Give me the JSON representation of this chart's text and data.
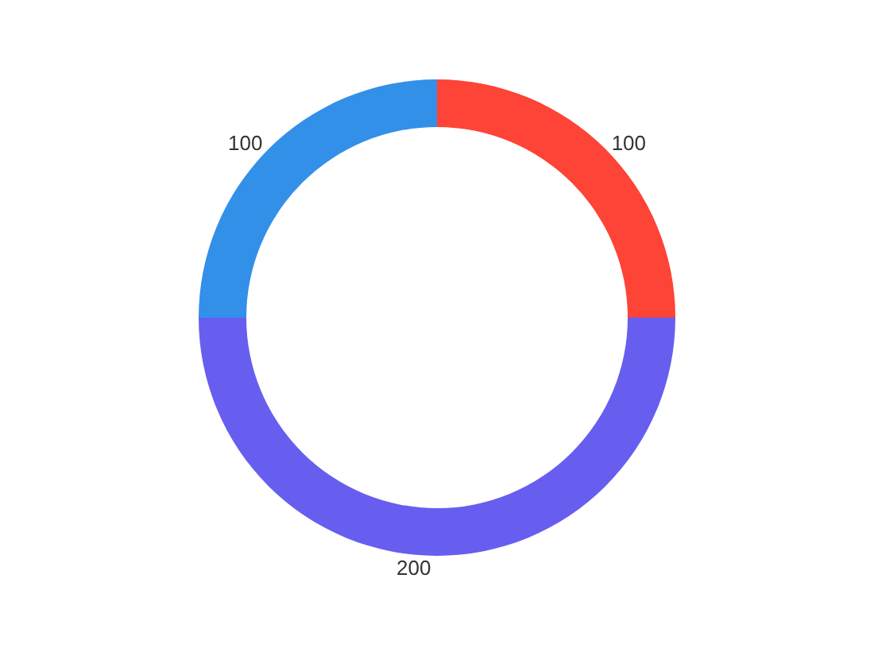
{
  "chart_data": {
    "type": "donut",
    "categories": [
      null,
      null,
      null
    ],
    "values": [
      100,
      200,
      100
    ],
    "colors": [
      "#fe4337",
      "#675ef0",
      "#3290e8"
    ],
    "data_labels": true
  }
}
